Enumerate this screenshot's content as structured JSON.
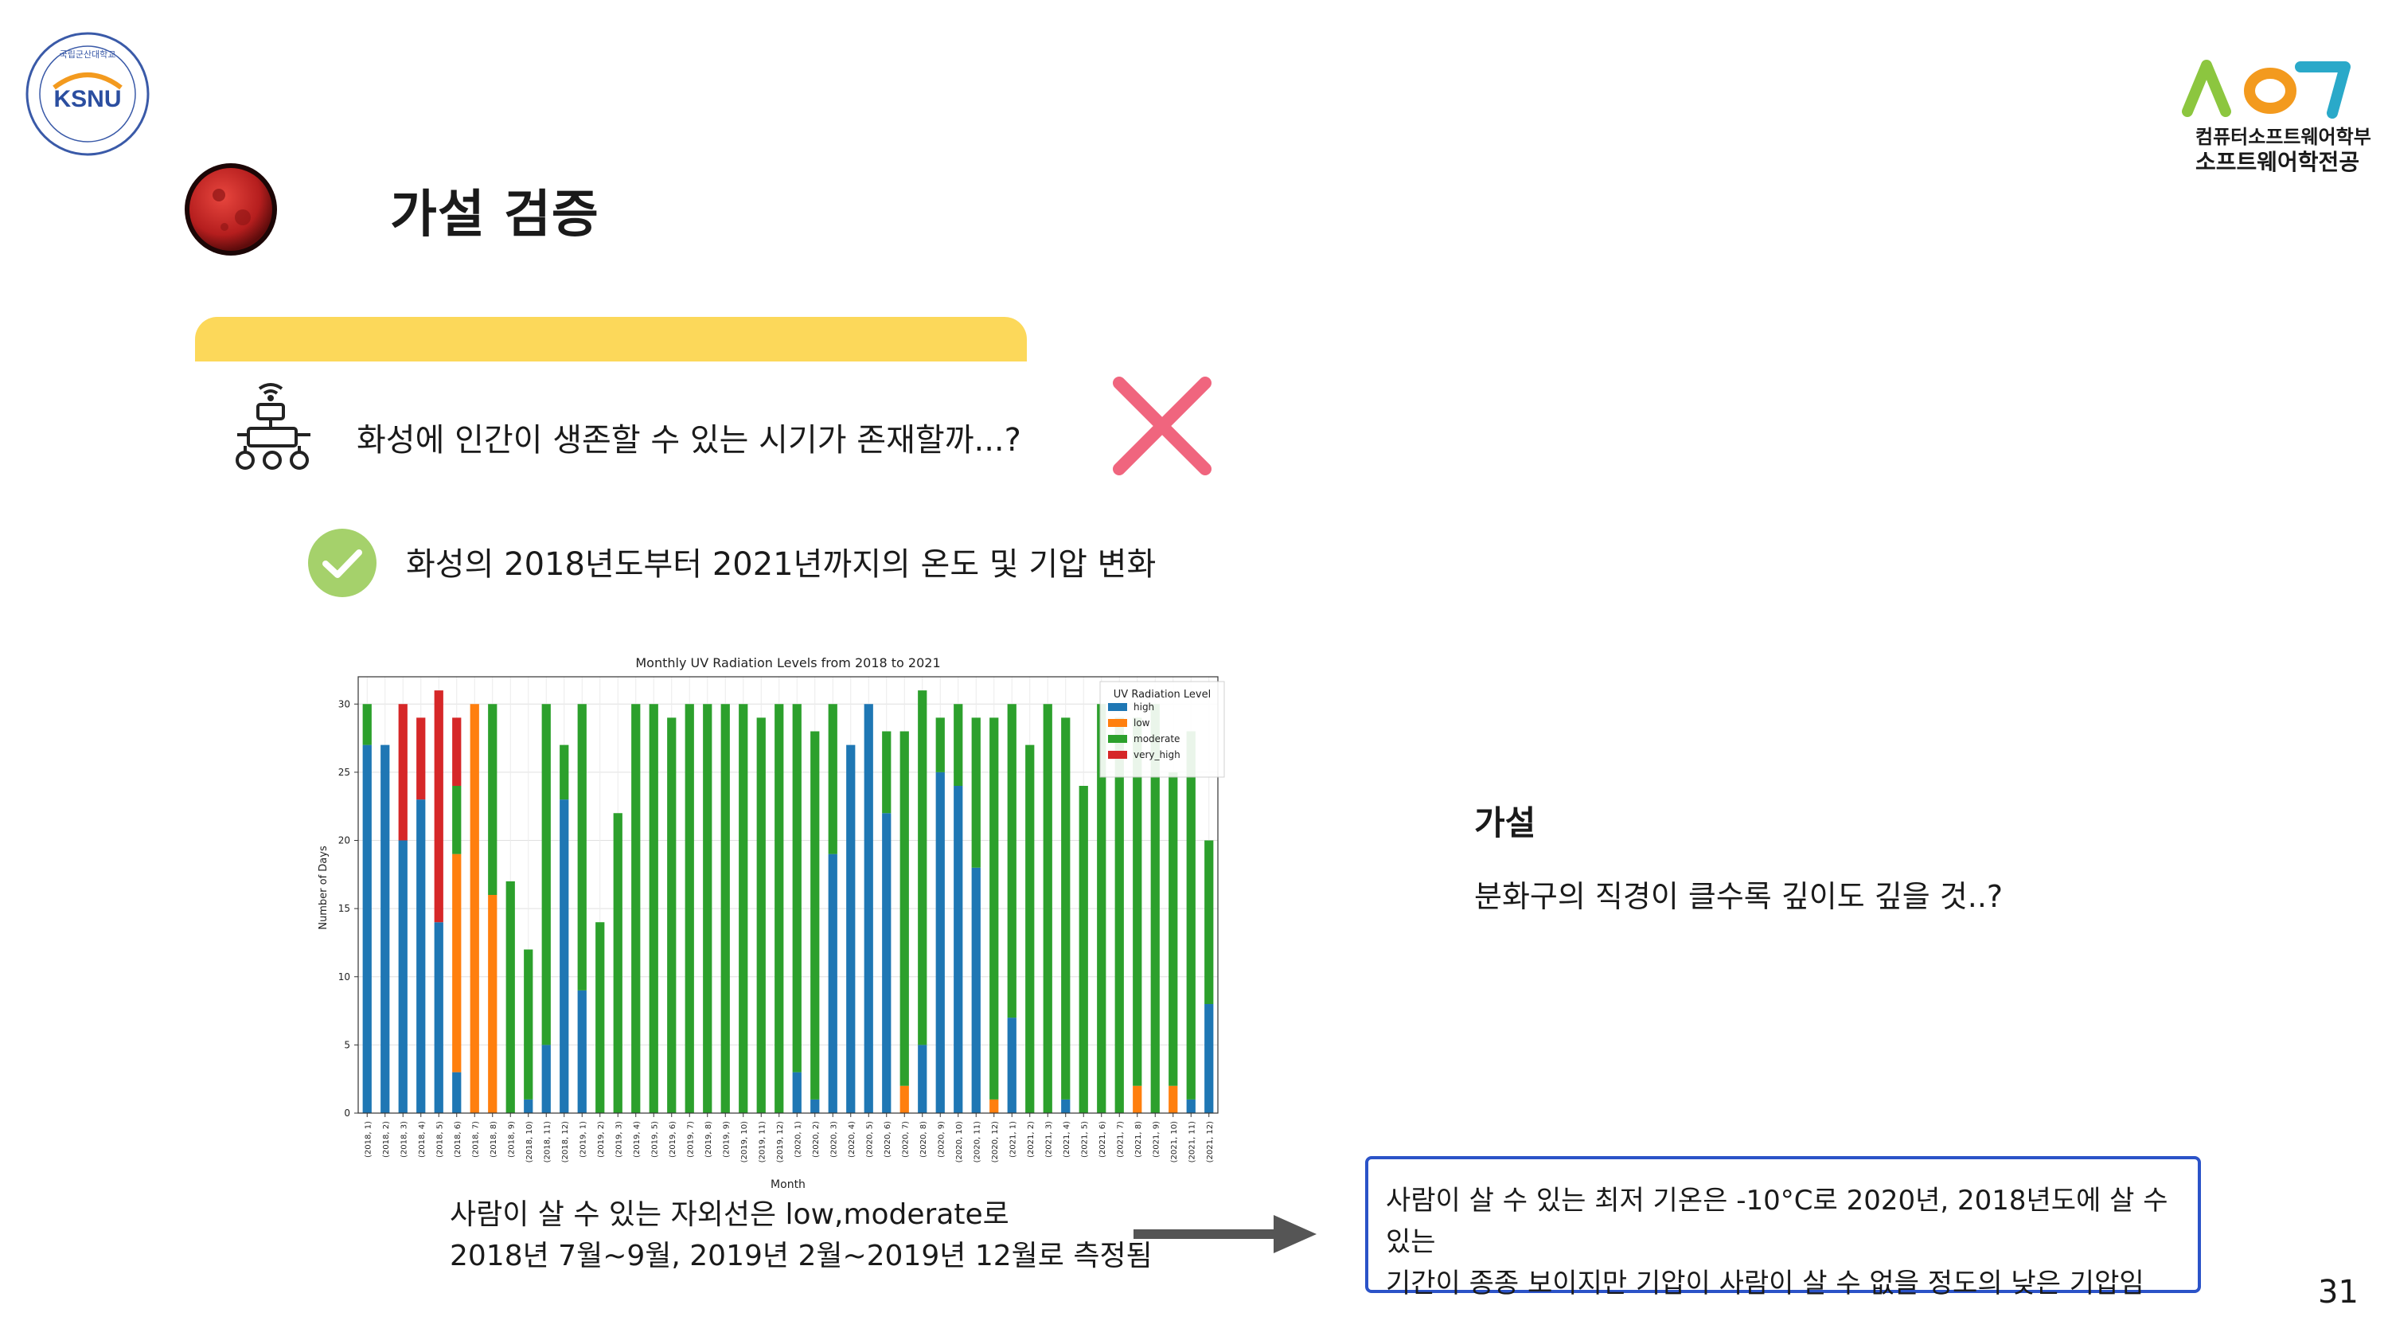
{
  "logo_left": {
    "text": "KSNU",
    "ring_text": "국립군산대학교"
  },
  "logo_right": {
    "sub": "컴퓨터소프트웨어학부",
    "dept": "소프트웨어학전공"
  },
  "title": "가설 검증",
  "question": "화성에 인간이 생존할 수 있는 시기가 존재할까...?",
  "subtitle": "화성의 2018년도부터 2021년까지의 온도 및 기압 변화",
  "note_left": {
    "line1": "사람이 살 수 있는 자외선은 low,moderate로",
    "line2": "2018년 7월~9월, 2019년 2월~2019년 12월로 측정됨"
  },
  "hypothesis": {
    "title": "가설",
    "text": "분화구의 직경이 클수록 깊이도 깊을 것..?"
  },
  "result": {
    "line1": "사람이 살 수 있는 최저 기온은 -10°C로 2020년, 2018년도에 살 수 있는",
    "line2": "기간이 종종 보이지만 기압이 사람이 살 수 없을 정도의 낮은 기압임"
  },
  "page_number": "31",
  "colors": {
    "yellow_tab": "#fcd85a",
    "x_mark": "#f0657e",
    "check": "#a5d16b",
    "box_border": "#2b53c8",
    "arrow": "#555555"
  },
  "icons": [
    "mars-planet-icon",
    "rover-icon",
    "x-mark-icon",
    "check-circle-icon",
    "right-arrow-icon"
  ],
  "chart_data": {
    "type": "bar",
    "stacked": true,
    "title": "Monthly UV Radiation Levels from 2018 to 2021",
    "xlabel": "Month",
    "ylabel": "Number of Days",
    "ylim": [
      0,
      32
    ],
    "yticks": [
      0,
      5,
      10,
      15,
      20,
      25,
      30
    ],
    "legend_title": "UV Radiation Level",
    "legend_position": "top-right",
    "grid": true,
    "categories": [
      "(2018, 1)",
      "(2018, 2)",
      "(2018, 3)",
      "(2018, 4)",
      "(2018, 5)",
      "(2018, 6)",
      "(2018, 7)",
      "(2018, 8)",
      "(2018, 9)",
      "(2018, 10)",
      "(2018, 11)",
      "(2018, 12)",
      "(2019, 1)",
      "(2019, 2)",
      "(2019, 3)",
      "(2019, 4)",
      "(2019, 5)",
      "(2019, 6)",
      "(2019, 7)",
      "(2019, 8)",
      "(2019, 9)",
      "(2019, 10)",
      "(2019, 11)",
      "(2019, 12)",
      "(2020, 1)",
      "(2020, 2)",
      "(2020, 3)",
      "(2020, 4)",
      "(2020, 5)",
      "(2020, 6)",
      "(2020, 7)",
      "(2020, 8)",
      "(2020, 9)",
      "(2020, 10)",
      "(2020, 11)",
      "(2020, 12)",
      "(2021, 1)",
      "(2021, 2)",
      "(2021, 3)",
      "(2021, 4)",
      "(2021, 5)",
      "(2021, 6)",
      "(2021, 7)",
      "(2021, 8)",
      "(2021, 9)",
      "(2021, 10)",
      "(2021, 11)",
      "(2021, 12)"
    ],
    "series": [
      {
        "name": "high",
        "color": "#1f77b4",
        "values": [
          27,
          27,
          20,
          23,
          14,
          3,
          0,
          0,
          0,
          1,
          5,
          23,
          9,
          0,
          0,
          0,
          0,
          0,
          0,
          0,
          0,
          0,
          0,
          0,
          3,
          1,
          19,
          27,
          30,
          22,
          0,
          5,
          25,
          24,
          18,
          0,
          7,
          0,
          0,
          1,
          0,
          0,
          0,
          0,
          0,
          0,
          1,
          8
        ]
      },
      {
        "name": "low",
        "color": "#ff7f0e",
        "values": [
          0,
          0,
          0,
          0,
          0,
          16,
          30,
          16,
          0,
          0,
          0,
          0,
          0,
          0,
          0,
          0,
          0,
          0,
          0,
          0,
          0,
          0,
          0,
          0,
          0,
          0,
          0,
          0,
          0,
          0,
          2,
          0,
          0,
          0,
          0,
          1,
          0,
          0,
          0,
          0,
          0,
          0,
          0,
          2,
          0,
          2,
          0,
          0
        ]
      },
      {
        "name": "moderate",
        "color": "#2ca02c",
        "values": [
          3,
          0,
          0,
          0,
          0,
          5,
          0,
          14,
          17,
          11,
          25,
          4,
          21,
          14,
          22,
          30,
          30,
          29,
          30,
          30,
          30,
          30,
          29,
          30,
          27,
          27,
          11,
          0,
          0,
          6,
          26,
          26,
          4,
          6,
          11,
          28,
          23,
          27,
          30,
          28,
          24,
          30,
          29,
          27,
          30,
          23,
          27,
          12
        ]
      },
      {
        "name": "very_high",
        "color": "#d62728",
        "values": [
          0,
          0,
          10,
          6,
          17,
          5,
          0,
          0,
          0,
          0,
          0,
          0,
          0,
          0,
          0,
          0,
          0,
          0,
          0,
          0,
          0,
          0,
          0,
          0,
          0,
          0,
          0,
          0,
          0,
          0,
          0,
          0,
          0,
          0,
          0,
          0,
          0,
          0,
          0,
          0,
          0,
          0,
          0,
          0,
          0,
          0,
          0,
          0
        ]
      }
    ]
  }
}
